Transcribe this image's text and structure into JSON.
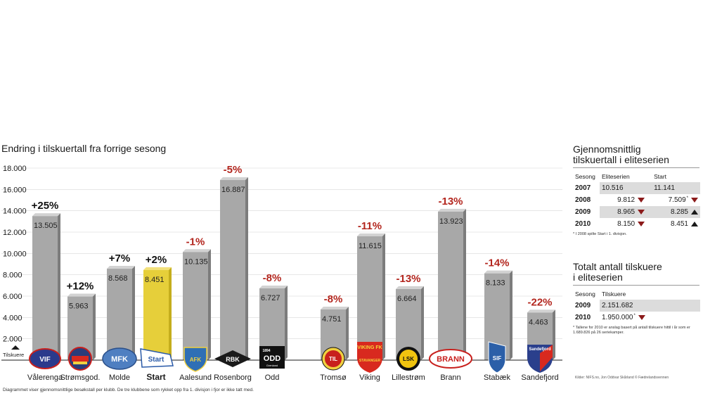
{
  "chart_data": {
    "type": "bar",
    "title": "Endring i tilskuertall fra forrige sesong",
    "yticks": [
      "18.000",
      "16.000",
      "14.000",
      "12.000",
      "10.000",
      "8.000",
      "6.000",
      "4.000",
      "2.000"
    ],
    "ylim": [
      0,
      18000
    ],
    "axis_marker": "Tilskuere",
    "categories": [
      "Vålerenga",
      "Strømsgod.",
      "Molde",
      "Start",
      "Aalesund",
      "Rosenborg",
      "Odd",
      "Tromsø",
      "Viking",
      "Lillestrøm",
      "Brann",
      "Stabæk",
      "Sandefjord"
    ],
    "values": [
      13505,
      5963,
      8568,
      8451,
      10135,
      16887,
      6727,
      4751,
      11615,
      6664,
      13923,
      8133,
      4463
    ],
    "value_labels": [
      "13.505",
      "5.963",
      "8.568",
      "8.451",
      "10.135",
      "16.887",
      "6.727",
      "4.751",
      "11.615",
      "6.664",
      "13.923",
      "8.133",
      "4.463"
    ],
    "changes": [
      "+25%",
      "+12%",
      "+7%",
      "+2%",
      "-1%",
      "-5%",
      "-8%",
      "-8%",
      "-11%",
      "-13%",
      "-13%",
      "-14%",
      "-22%"
    ],
    "highlight": "Start",
    "colors": {
      "bar": "#a8a8a8",
      "bar_side": "#7c7c7c",
      "bar_top": "#d2d2d2",
      "highlight": "#e6cf3a",
      "highlight_side": "#c4ad1c",
      "negative": "#b3261e",
      "positive": "#111111"
    },
    "logos": [
      {
        "name": "valerenga-logo",
        "text": "VIF",
        "bg": "#2b3a8c",
        "fg": "#ffffff",
        "shape": "oval"
      },
      {
        "name": "stromsgodset-logo",
        "text": "",
        "bg": "#2a3c7a",
        "fg": "#ffffff",
        "shape": "circle"
      },
      {
        "name": "molde-logo",
        "text": "MFK",
        "bg": "#4f7fc1",
        "fg": "#ffffff",
        "shape": "oval"
      },
      {
        "name": "start-logo",
        "text": "Start",
        "bg": "#ffffff",
        "fg": "#2a5aa8",
        "shape": "flag"
      },
      {
        "name": "aalesund-logo",
        "text": "AFK",
        "bg": "#2f6fb5",
        "fg": "#f0d040",
        "shape": "shield"
      },
      {
        "name": "rosenborg-logo",
        "text": "RBK",
        "bg": "#1a1a1a",
        "fg": "#ffffff",
        "shape": "diamond"
      },
      {
        "name": "odd-logo",
        "text": "ODD",
        "bg": "#111111",
        "fg": "#ffffff",
        "shape": "square"
      },
      {
        "name": "tromso-logo",
        "text": "TIL",
        "bg": "#c8201d",
        "fg": "#ffffff",
        "shape": "circle"
      },
      {
        "name": "viking-logo",
        "text": "VIKING FK",
        "bg": "#d8291f",
        "fg": "#f5d33a",
        "shape": "shield"
      },
      {
        "name": "lillestrom-logo",
        "text": "LSK",
        "bg": "#f1c40f",
        "fg": "#111111",
        "shape": "circle"
      },
      {
        "name": "brann-logo",
        "text": "BRANN",
        "bg": "#ffffff",
        "fg": "#c8201d",
        "shape": "oval"
      },
      {
        "name": "stabaek-logo",
        "text": "SIF",
        "bg": "#2b5fa8",
        "fg": "#ffffff",
        "shape": "shield"
      },
      {
        "name": "sandefjord-logo",
        "text": "Sandefjord",
        "bg": "#2a3f8c",
        "fg": "#d8291f",
        "shape": "shield"
      }
    ],
    "logo_texts": {
      "valerenga": "VIF",
      "molde": "MFK",
      "start": "Start",
      "aalesund": "AFK",
      "rosenborg": "RBK",
      "odd_year": "1894",
      "odd": "ODD",
      "odd_sub": "Grenland",
      "tromso": "TIL",
      "viking": "VIKING FK",
      "viking_sub": "STAVANGER",
      "lillestrom": "LSK",
      "brann": "BRANN",
      "stabaek": "SIF",
      "sandefjord": "Sandefjord"
    },
    "footnote": "Diagrammet viser gjennomsnittlige besøkstall per klubb. De tre klubbene som rykket opp fra 1. divisjon i fjor er ikke tatt med.",
    "source": "Kilder: NIFS.no, Jon Oddvar Skårland © Fædrelandsvennen"
  },
  "panel1": {
    "title_line1": "Gjennomsnittlig",
    "title_line2": "tilskuertall i eliteserien",
    "headers": {
      "season": "Sesong",
      "elite": "Eliteserien",
      "start": "Start"
    },
    "rows": [
      {
        "year": "2007",
        "elite": "10.516",
        "elite_trend": "",
        "start": "11.141",
        "start_note": "",
        "start_trend": ""
      },
      {
        "year": "2008",
        "elite": "9.812",
        "elite_trend": "down",
        "start": "7.509",
        "start_note": "*",
        "start_trend": "down"
      },
      {
        "year": "2009",
        "elite": "8.965",
        "elite_trend": "down",
        "start": "8.285",
        "start_note": "",
        "start_trend": "up"
      },
      {
        "year": "2010",
        "elite": "8.150",
        "elite_trend": "down",
        "start": "8.451",
        "start_note": "",
        "start_trend": "up"
      }
    ],
    "note": "* I 2008 spilte Start i 1. divisjon."
  },
  "panel2": {
    "title_line1": "Totalt antall tilskuere",
    "title_line2": "i eliteserien",
    "headers": {
      "season": "Sesong",
      "total": "Tilskuere"
    },
    "rows": [
      {
        "year": "2009",
        "total": "2.151.682",
        "note": "",
        "trend": ""
      },
      {
        "year": "2010",
        "total": "1.950.000",
        "note": "*",
        "trend": "down"
      }
    ],
    "note": "* Tallene for 2010 er anslag basert på antall tilskuere hittil i år som er 1.689.826 på 26 seriekamper."
  }
}
